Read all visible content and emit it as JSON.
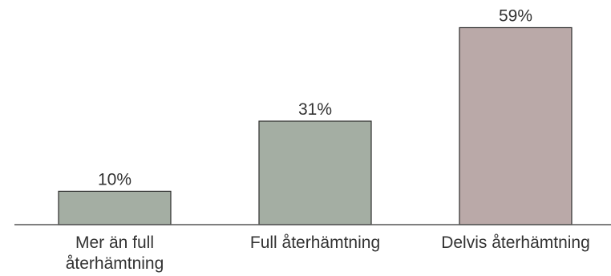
{
  "chart_data": {
    "type": "bar",
    "categories": [
      "Mer än full återhämtning",
      "Full återhämtning",
      "Delvis återhämtning"
    ],
    "category_lines": [
      [
        "Mer än full",
        "återhämtning"
      ],
      [
        "Full återhämtning"
      ],
      [
        "Delvis återhämtning"
      ]
    ],
    "values": [
      10,
      31,
      59
    ],
    "value_labels": [
      "10%",
      "31%",
      "59%"
    ],
    "bar_colors": [
      "#a4aea3",
      "#a4aea3",
      "#baa9a8"
    ],
    "bar_outline": "#2e2e2e",
    "axis_color": "#555555",
    "ylim": [
      0,
      62
    ]
  }
}
